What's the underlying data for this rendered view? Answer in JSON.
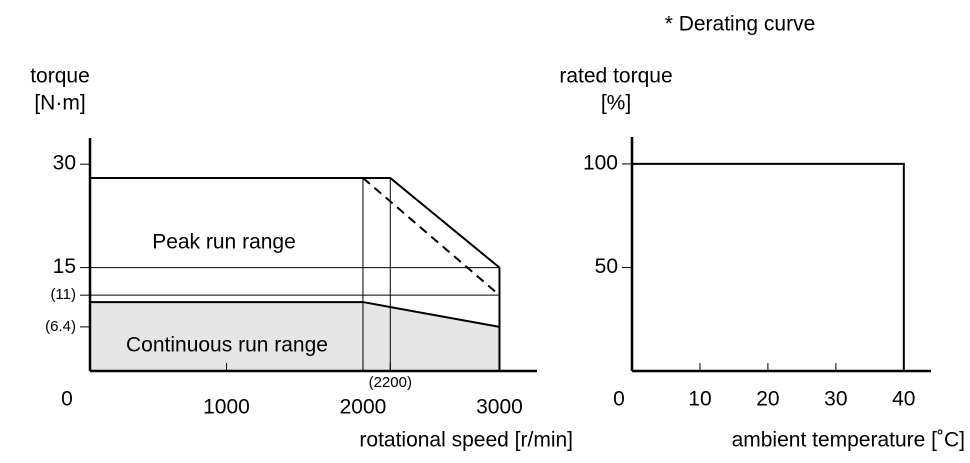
{
  "chart_data": [
    {
      "type": "line",
      "ylabel": [
        "torque",
        "[N·m]"
      ],
      "xlabel": "rotational speed [r/min]",
      "xlim": [
        0,
        3275
      ],
      "ylim": [
        0,
        33.8
      ],
      "xticks": [
        0,
        1000,
        2000,
        {
          "value": 2200,
          "label": "(2200)"
        },
        3000
      ],
      "yticks": [
        {
          "value": 6.4,
          "label": "(6.4)"
        },
        {
          "value": 11,
          "label": "(11)"
        },
        15,
        30
      ],
      "series": [
        {
          "name": "Peak run range",
          "color": "#000000",
          "x": [
            0,
            2000,
            2200,
            3000
          ],
          "values": [
            28,
            28,
            28,
            15
          ]
        },
        {
          "color": "#000000",
          "dash": true,
          "x": [
            2000,
            3000
          ],
          "values": [
            28,
            11
          ]
        },
        {
          "name": "Continuous run range",
          "color": "#000000",
          "fill": "#e6e6e6",
          "x": [
            0,
            2000,
            3000
          ],
          "values": [
            10,
            10,
            6.4
          ]
        },
        {
          "color": "#000000",
          "thin": true,
          "x": [
            0,
            3000
          ],
          "values": [
            15,
            15
          ]
        },
        {
          "color": "#000000",
          "thin": true,
          "x": [
            0,
            3000
          ],
          "values": [
            11,
            11
          ]
        },
        {
          "color": "#000000",
          "thin": true,
          "x": [
            2000,
            2000
          ],
          "values": [
            0,
            28
          ]
        },
        {
          "color": "#000000",
          "thin": true,
          "x": [
            2200,
            2200
          ],
          "values": [
            0,
            28
          ]
        },
        {
          "color": "#000000",
          "x": [
            3000,
            3000
          ],
          "values": [
            0,
            15
          ]
        }
      ]
    },
    {
      "type": "line",
      "title": "* Derating curve",
      "ylabel": [
        "rated torque",
        "[%]"
      ],
      "xlabel": "ambient temperature [˚C]",
      "xlim": [
        0,
        44
      ],
      "ylim": [
        0,
        113
      ],
      "xticks": [
        0,
        10,
        20,
        30,
        40
      ],
      "yticks": [
        50,
        100
      ],
      "series": [
        {
          "color": "#000000",
          "x": [
            0,
            40,
            40
          ],
          "values": [
            100,
            100,
            0
          ]
        }
      ]
    }
  ]
}
